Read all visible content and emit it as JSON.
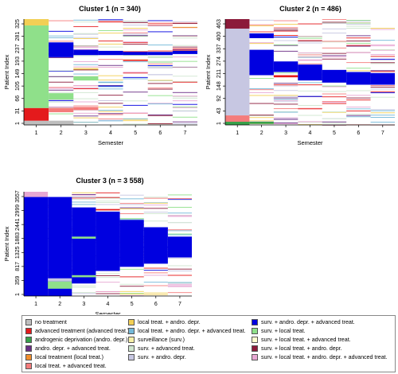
{
  "state_colors": {
    "none": "#bebebe",
    "adv": "#e41a1c",
    "andro": "#37a04a",
    "andro_adv": "#6a2d85",
    "local": "#f28e2b",
    "local_adv": "#f47c7c",
    "local_andro": "#f2cf55",
    "local_andro_adv": "#74b9d9",
    "surv": "#f7f0a8",
    "surv_adv": "#cfe6cf",
    "surv_andro": "#c7c7e2",
    "surv_andro_adv": "#0000e0",
    "surv_local": "#8fe08a",
    "surv_local_adv": "#ffffd0",
    "surv_local_andro": "#8b1a3a",
    "surv_local_andro_adv": "#e7a7d3",
    "filler": "#e8e8f0"
  },
  "legend": {
    "items": [
      {
        "label": "no treatment",
        "color": "#bebebe"
      },
      {
        "label": "advanced treatment (advanced treat.)",
        "color": "#e41a1c"
      },
      {
        "label": "androgenic deprivation (andro. depr.)",
        "color": "#37a04a"
      },
      {
        "label": "andro. depr. + advanced treat.",
        "color": "#6a2d85"
      },
      {
        "label": "local treatment (local treat.)",
        "color": "#f28e2b"
      },
      {
        "label": "local treat. + advanced  treat.",
        "color": "#f47c7c"
      },
      {
        "label": "local treat. + andro. depr.",
        "color": "#f2cf55"
      },
      {
        "label": "local treat. + andro. depr. + advanced treat.",
        "color": "#74b9d9"
      },
      {
        "label": "surveillance (surv.)",
        "color": "#f7f0a8"
      },
      {
        "label": "surv. + advanced treat.",
        "color": "#cfe6cf"
      },
      {
        "label": "surv. + andro. depr.",
        "color": "#c7c7e2"
      },
      {
        "label": "surv. + andro. depr. + advanced treat.",
        "color": "#0000e0"
      },
      {
        "label": "surv. + local treat.",
        "color": "#8fe08a"
      },
      {
        "label": "surv. + local treat. + advanced treat.",
        "color": "#ffffd0"
      },
      {
        "label": "surv. + local treat. + andro. depr.",
        "color": "#8b1a3a"
      },
      {
        "label": "surv. + local treat. + andro. depr. + advanced treat.",
        "color": "#e7a7d3"
      }
    ]
  },
  "chart_data": [
    {
      "type": "heatmap",
      "title": "Cluster 1 (n = 340)",
      "xlabel": "Semester",
      "ylabel": "Patient Index",
      "x_ticks": [
        "1",
        "2",
        "3",
        "4",
        "5",
        "6",
        "7"
      ],
      "y_ticks": [
        "1",
        "31",
        "66",
        "105",
        "149",
        "193",
        "237",
        "281",
        "325"
      ],
      "n": 340,
      "segments": [
        {
          "state": "none",
          "from": 0,
          "to": 0.04
        },
        {
          "state": "adv",
          "from": 0.04,
          "to": 0.16
        },
        {
          "state": "surv_local",
          "from": 0.16,
          "to": 0.94
        },
        {
          "state": "local_andro",
          "from": 0.94,
          "to": 1
        }
      ],
      "columns": [
        {
          "col": 2,
          "regions": [
            {
              "state": "none",
              "from": 0,
              "to": 0.04
            },
            {
              "state": "local_adv",
              "from": 0.12,
              "to": 0.16
            },
            {
              "state": "surv_local",
              "from": 0.24,
              "to": 0.3
            },
            {
              "state": "surv_andro_adv",
              "from": 0.64,
              "to": 0.78
            }
          ]
        },
        {
          "col": 3,
          "regions": [
            {
              "state": "local_adv",
              "from": 0.14,
              "to": 0.17
            },
            {
              "state": "surv_local",
              "from": 0.42,
              "to": 0.46
            },
            {
              "state": "surv_andro_adv",
              "from": 0.66,
              "to": 0.71
            }
          ]
        },
        {
          "col": 4,
          "regions": [
            {
              "state": "surv_andro_adv",
              "from": 0.66,
              "to": 0.7
            }
          ]
        },
        {
          "col": 5,
          "regions": [
            {
              "state": "surv_andro_adv",
              "from": 0.66,
              "to": 0.69
            }
          ]
        },
        {
          "col": 6,
          "regions": [
            {
              "state": "surv_andro_adv",
              "from": 0.66,
              "to": 0.69
            }
          ]
        },
        {
          "col": 7,
          "regions": [
            {
              "state": "surv_andro_adv",
              "from": 0.67,
              "to": 0.7
            }
          ]
        }
      ]
    },
    {
      "type": "heatmap",
      "title": "Cluster 2 (n = 486)",
      "xlabel": "Semester",
      "ylabel": "Patient Index",
      "x_ticks": [
        "1",
        "2",
        "3",
        "4",
        "5",
        "6",
        "7"
      ],
      "y_ticks": [
        "1",
        "43",
        "92",
        "148",
        "211",
        "274",
        "337",
        "400",
        "463"
      ],
      "n": 486,
      "segments": [
        {
          "state": "andro",
          "from": 0,
          "to": 0.03
        },
        {
          "state": "local_adv",
          "from": 0.03,
          "to": 0.09
        },
        {
          "state": "surv_andro",
          "from": 0.09,
          "to": 0.91
        },
        {
          "state": "surv_local_andro",
          "from": 0.91,
          "to": 1
        }
      ],
      "columns": [
        {
          "col": 2,
          "regions": [
            {
              "state": "surv_andro_adv",
              "from": 0.47,
              "to": 0.71
            },
            {
              "state": "surv_andro_adv",
              "from": 0.82,
              "to": 0.86
            },
            {
              "state": "andro",
              "from": 0.01,
              "to": 0.03
            }
          ]
        },
        {
          "col": 3,
          "regions": [
            {
              "state": "surv_andro_adv",
              "from": 0.5,
              "to": 0.6
            },
            {
              "state": "adv",
              "from": 0.45,
              "to": 0.47
            }
          ]
        },
        {
          "col": 4,
          "regions": [
            {
              "state": "surv_andro_adv",
              "from": 0.42,
              "to": 0.57
            }
          ]
        },
        {
          "col": 5,
          "regions": [
            {
              "state": "surv_andro_adv",
              "from": 0.4,
              "to": 0.52
            }
          ]
        },
        {
          "col": 6,
          "regions": [
            {
              "state": "surv_andro_adv",
              "from": 0.38,
              "to": 0.5
            }
          ]
        },
        {
          "col": 7,
          "regions": [
            {
              "state": "surv_andro_adv",
              "from": 0.38,
              "to": 0.49
            }
          ]
        }
      ]
    },
    {
      "type": "heatmap",
      "title": "Cluster 3 (n = 3 558)",
      "xlabel": "Semester",
      "ylabel": "Patient Index",
      "x_ticks": [
        "1",
        "2",
        "3",
        "4",
        "5",
        "6",
        "7"
      ],
      "y_ticks": [
        "1",
        "359",
        "817",
        "1325",
        "1883",
        "2441",
        "2999",
        "3557"
      ],
      "n": 3558,
      "segments": [
        {
          "state": "surv_andro_adv",
          "from": 0,
          "to": 0.95
        },
        {
          "state": "surv_local_andro_adv",
          "from": 0.95,
          "to": 1
        }
      ],
      "columns": [
        {
          "col": 2,
          "regions": [
            {
              "state": "surv_andro_adv",
              "from": 0.0,
              "to": 0.95
            },
            {
              "state": "surv_local",
              "from": 0.07,
              "to": 0.14
            },
            {
              "state": "surv_andro",
              "from": 0.14,
              "to": 0.17
            }
          ]
        },
        {
          "col": 3,
          "regions": [
            {
              "state": "surv_andro_adv",
              "from": 0.12,
              "to": 0.85
            },
            {
              "state": "surv_local",
              "from": 0.18,
              "to": 0.2
            },
            {
              "state": "surv_local",
              "from": 0.55,
              "to": 0.57
            }
          ]
        },
        {
          "col": 4,
          "regions": [
            {
              "state": "surv_andro_adv",
              "from": 0.24,
              "to": 0.81
            }
          ]
        },
        {
          "col": 5,
          "regions": [
            {
              "state": "surv_andro_adv",
              "from": 0.28,
              "to": 0.73
            }
          ]
        },
        {
          "col": 6,
          "regions": [
            {
              "state": "surv_andro_adv",
              "from": 0.31,
              "to": 0.66
            }
          ]
        },
        {
          "col": 7,
          "regions": [
            {
              "state": "surv_andro_adv",
              "from": 0.37,
              "to": 0.57
            }
          ]
        }
      ]
    }
  ]
}
